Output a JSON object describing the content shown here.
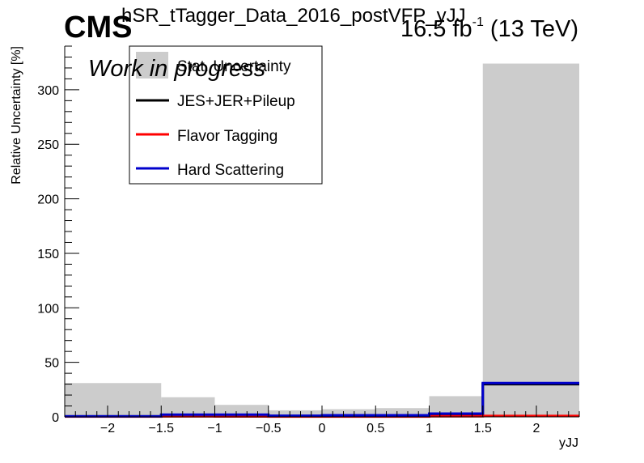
{
  "header": {
    "cms": "CMS",
    "title": "hSR_tTagger_Data_2016_postVFP_yJJ",
    "lumi_text": "16.5 fb",
    "lumi_exp": "-1",
    "energy": " (13 TeV)",
    "wip": "Work in progress"
  },
  "chart_data": {
    "type": "bar",
    "title": "hSR_tTagger_Data_2016_postVFP_yJJ",
    "xlabel": "yJJ",
    "ylabel": "Relative Uncertainty [%]",
    "xlim": [
      -2.4,
      2.4
    ],
    "ylim": [
      0,
      340
    ],
    "x_ticks": [
      -2,
      -1.5,
      -1,
      -0.5,
      0,
      0.5,
      1,
      1.5,
      2
    ],
    "x_tick_labels": [
      "−2",
      "−1.5",
      "−1",
      "−0.5",
      "0",
      "0.5",
      "1",
      "1.5",
      "2"
    ],
    "y_ticks": [
      0,
      50,
      100,
      150,
      200,
      250,
      300
    ],
    "y_tick_labels": [
      "0",
      "50",
      "100",
      "150",
      "200",
      "250",
      "300"
    ],
    "bin_edges": [
      -2.4,
      -1.5,
      -1.0,
      -0.5,
      0.0,
      0.5,
      1.0,
      1.5,
      2.4
    ],
    "legend": {
      "placement": "top-left"
    },
    "series": [
      {
        "name": "Stat. Uncertainty",
        "style": "fill",
        "color": "#cccccc",
        "values": [
          31,
          18,
          11,
          6,
          7,
          8,
          19,
          324
        ]
      },
      {
        "name": "JES+JER+Pileup",
        "style": "step",
        "color": "#000000",
        "values": [
          0.5,
          1.5,
          1,
          0.8,
          0.8,
          1,
          2,
          30
        ]
      },
      {
        "name": "Flavor Tagging",
        "style": "step",
        "color": "#ff0000",
        "values": [
          0.3,
          0.5,
          0.4,
          0.3,
          0.3,
          0.3,
          0.6,
          0.8
        ]
      },
      {
        "name": "Hard Scattering",
        "style": "step",
        "color": "#0000cc",
        "values": [
          0.5,
          2,
          2,
          1,
          1.5,
          1.5,
          3,
          31
        ]
      }
    ]
  }
}
